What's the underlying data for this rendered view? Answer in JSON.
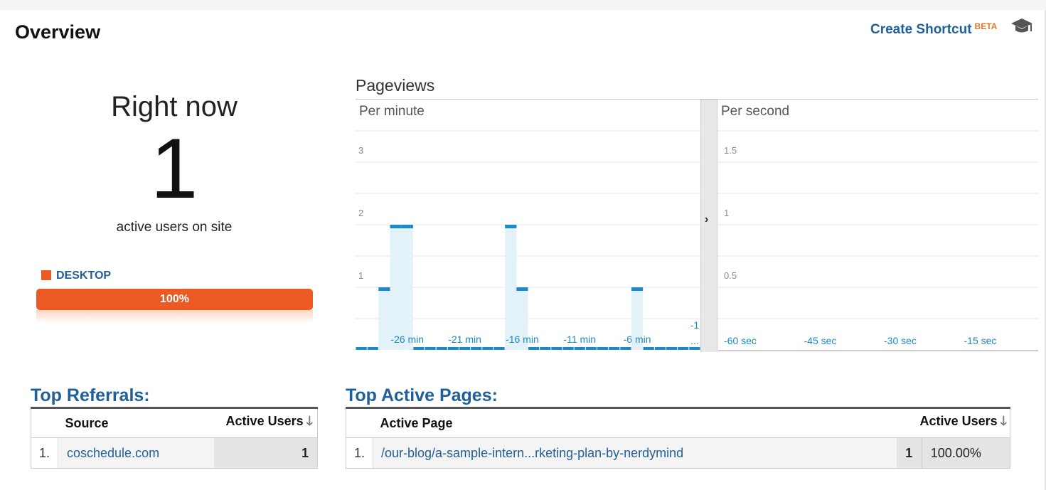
{
  "header": {
    "title": "Overview",
    "shortcut_label": "Create Shortcut",
    "beta_label": "BETA",
    "academy_icon": "graduation-cap-icon"
  },
  "right_now": {
    "label": "Right now",
    "count": "1",
    "subtitle": "active users on site",
    "device_label": "DESKTOP",
    "device_percent": "100%",
    "device_share": 1.0,
    "device_color": "#ea5a22"
  },
  "pageviews": {
    "title": "Pageviews",
    "per_minute_label": "Per minute",
    "per_second_label": "Per second",
    "expand_icon": "chevron-right-icon"
  },
  "chart_data": [
    {
      "type": "bar",
      "title": "Per minute",
      "y_ticks": [
        "1",
        "2",
        "3"
      ],
      "ylim": [
        0,
        4
      ],
      "x_tick_labels": [
        "-26 min",
        "-21 min",
        "-16 min",
        "-11 min",
        "-6 min",
        "-1 ..."
      ],
      "minutes": [
        -30,
        -29,
        -28,
        -27,
        -26,
        -25,
        -24,
        -23,
        -22,
        -21,
        -20,
        -19,
        -18,
        -17,
        -16,
        -15,
        -14,
        -13,
        -12,
        -11,
        -10,
        -9,
        -8,
        -7,
        -6,
        -5,
        -4,
        -3,
        -2,
        -1
      ],
      "values": [
        0,
        0,
        1,
        2,
        2,
        0,
        0,
        0,
        0,
        0,
        0,
        0,
        0,
        2,
        1,
        0,
        0,
        0,
        0,
        0,
        0,
        0,
        0,
        0,
        1,
        0,
        0,
        0,
        0,
        0
      ],
      "color": "#1a8ac8"
    },
    {
      "type": "bar",
      "title": "Per second",
      "y_ticks": [
        "0.5",
        "1",
        "1.5"
      ],
      "ylim": [
        0,
        2
      ],
      "x_tick_labels": [
        "-60 sec",
        "-45 sec",
        "-30 sec",
        "-15 sec"
      ],
      "values": [],
      "color": "#1a8ac8"
    }
  ],
  "top_referrals": {
    "title": "Top Referrals:",
    "col_source": "Source",
    "col_active_users": "Active Users",
    "sort_icon": "arrow-down-icon",
    "rows": [
      {
        "index": "1.",
        "source": "coschedule.com",
        "active_users": "1"
      }
    ]
  },
  "top_active_pages": {
    "title": "Top Active Pages:",
    "col_page": "Active Page",
    "col_active_users": "Active Users",
    "sort_icon": "arrow-down-icon",
    "rows": [
      {
        "index": "1.",
        "page": "/our-blog/a-sample-intern...rketing-plan-by-nerdymind",
        "active_users": "1",
        "percent": "100.00%"
      }
    ]
  }
}
